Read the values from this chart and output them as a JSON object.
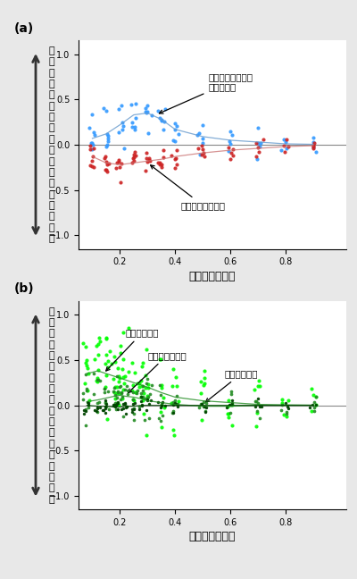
{
  "panel_a_label": "(a)",
  "panel_b_label": "(b)",
  "xlabel": "調査範囲の広さ",
  "ylim": [
    -1.15,
    1.15
  ],
  "xlim": [
    0.05,
    1.02
  ],
  "yticks": [
    -1.0,
    -0.5,
    0.0,
    0.5,
    1.0
  ],
  "xticks": [
    0.2,
    0.4,
    0.6,
    0.8
  ],
  "zero_line_color": "#888888",
  "background": "#e8e8e8",
  "plot_bg": "#ffffff",
  "panel_a": {
    "blue_color": "#3399FF",
    "red_color": "#CC2222",
    "line_color_blue": "#6699CC",
    "line_color_red": "#CC7777",
    "annotation_blue": "調査地域の偏りが\n大きい場合",
    "annotation_red": "偏りが小さい場合"
  },
  "panel_b": {
    "light_green": "#00FF00",
    "mid_green": "#228B22",
    "dark_green": "#004400",
    "annotation_narrow": "保護区が狭い",
    "annotation_medium": "保護区が中程度",
    "annotation_wide": "保護区が広い"
  },
  "ylabel_chars": [
    "精",
    "度",
    "や",
    "精",
    "度",
    "の",
    "有",
    "益",
    "さ",
    "の",
    "デ",
    "ー",
    "タ",
    "処",
    "理",
    "ー",
    "化",
    "膨"
  ]
}
